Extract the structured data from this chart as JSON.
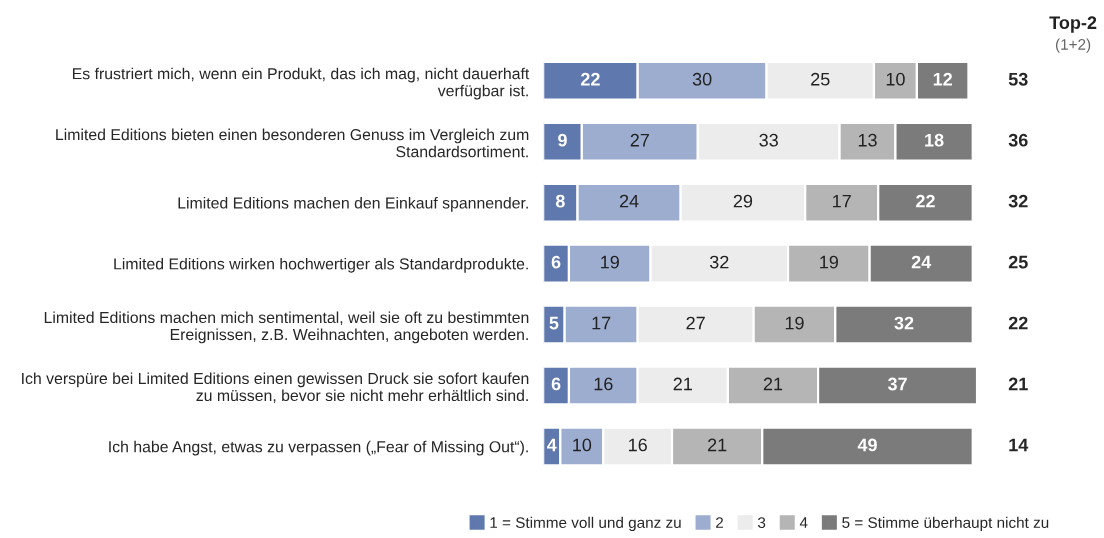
{
  "chart_data": {
    "type": "bar",
    "orientation": "horizontal",
    "stacked": true,
    "data_labels": true,
    "legend": "bottom",
    "grid": false,
    "tick_labels": "y",
    "categories": [
      "Es frustriert mich, wenn ein Produkt, das ich mag, nicht dauerhaft\nverfügbar ist.",
      "Limited Editions bieten einen besonderen Genuss im Vergleich zum\nStandardsortiment.",
      "Limited Editions machen den Einkauf spannender.",
      "Limited Editions wirken hochwertiger als Standardprodukte.",
      "Limited Editions machen mich sentimental, weil sie oft zu bestimmten\nEreignissen, z.B. Weihnachten, angeboten werden.",
      "Ich verspüre bei Limited Editions einen gewissen Druck sie sofort kaufen\nzu müssen, bevor sie nicht mehr erhältlich sind.",
      "Ich habe Angst, etwas zu verpassen („Fear of Missing Out“)."
    ],
    "series": [
      {
        "name": "1 = Stimme voll und ganz zu",
        "color": "#5f78ad",
        "values": [
          22,
          9,
          8,
          6,
          5,
          6,
          4
        ]
      },
      {
        "name": "2",
        "color": "#9dadd0",
        "values": [
          30,
          27,
          24,
          19,
          17,
          16,
          10
        ]
      },
      {
        "name": "3",
        "color": "#ececec",
        "values": [
          25,
          33,
          29,
          32,
          27,
          21,
          16
        ]
      },
      {
        "name": "4",
        "color": "#b5b5b5",
        "values": [
          10,
          13,
          17,
          19,
          19,
          21,
          21
        ]
      },
      {
        "name": "5 = Stimme überhaupt nicht zu",
        "color": "#7b7b7b",
        "values": [
          12,
          18,
          22,
          24,
          32,
          37,
          49
        ]
      }
    ],
    "annotations": [
      "Top-2",
      "(1+2)",
      "53",
      "36",
      "32",
      "25",
      "22",
      "21",
      "14"
    ]
  }
}
